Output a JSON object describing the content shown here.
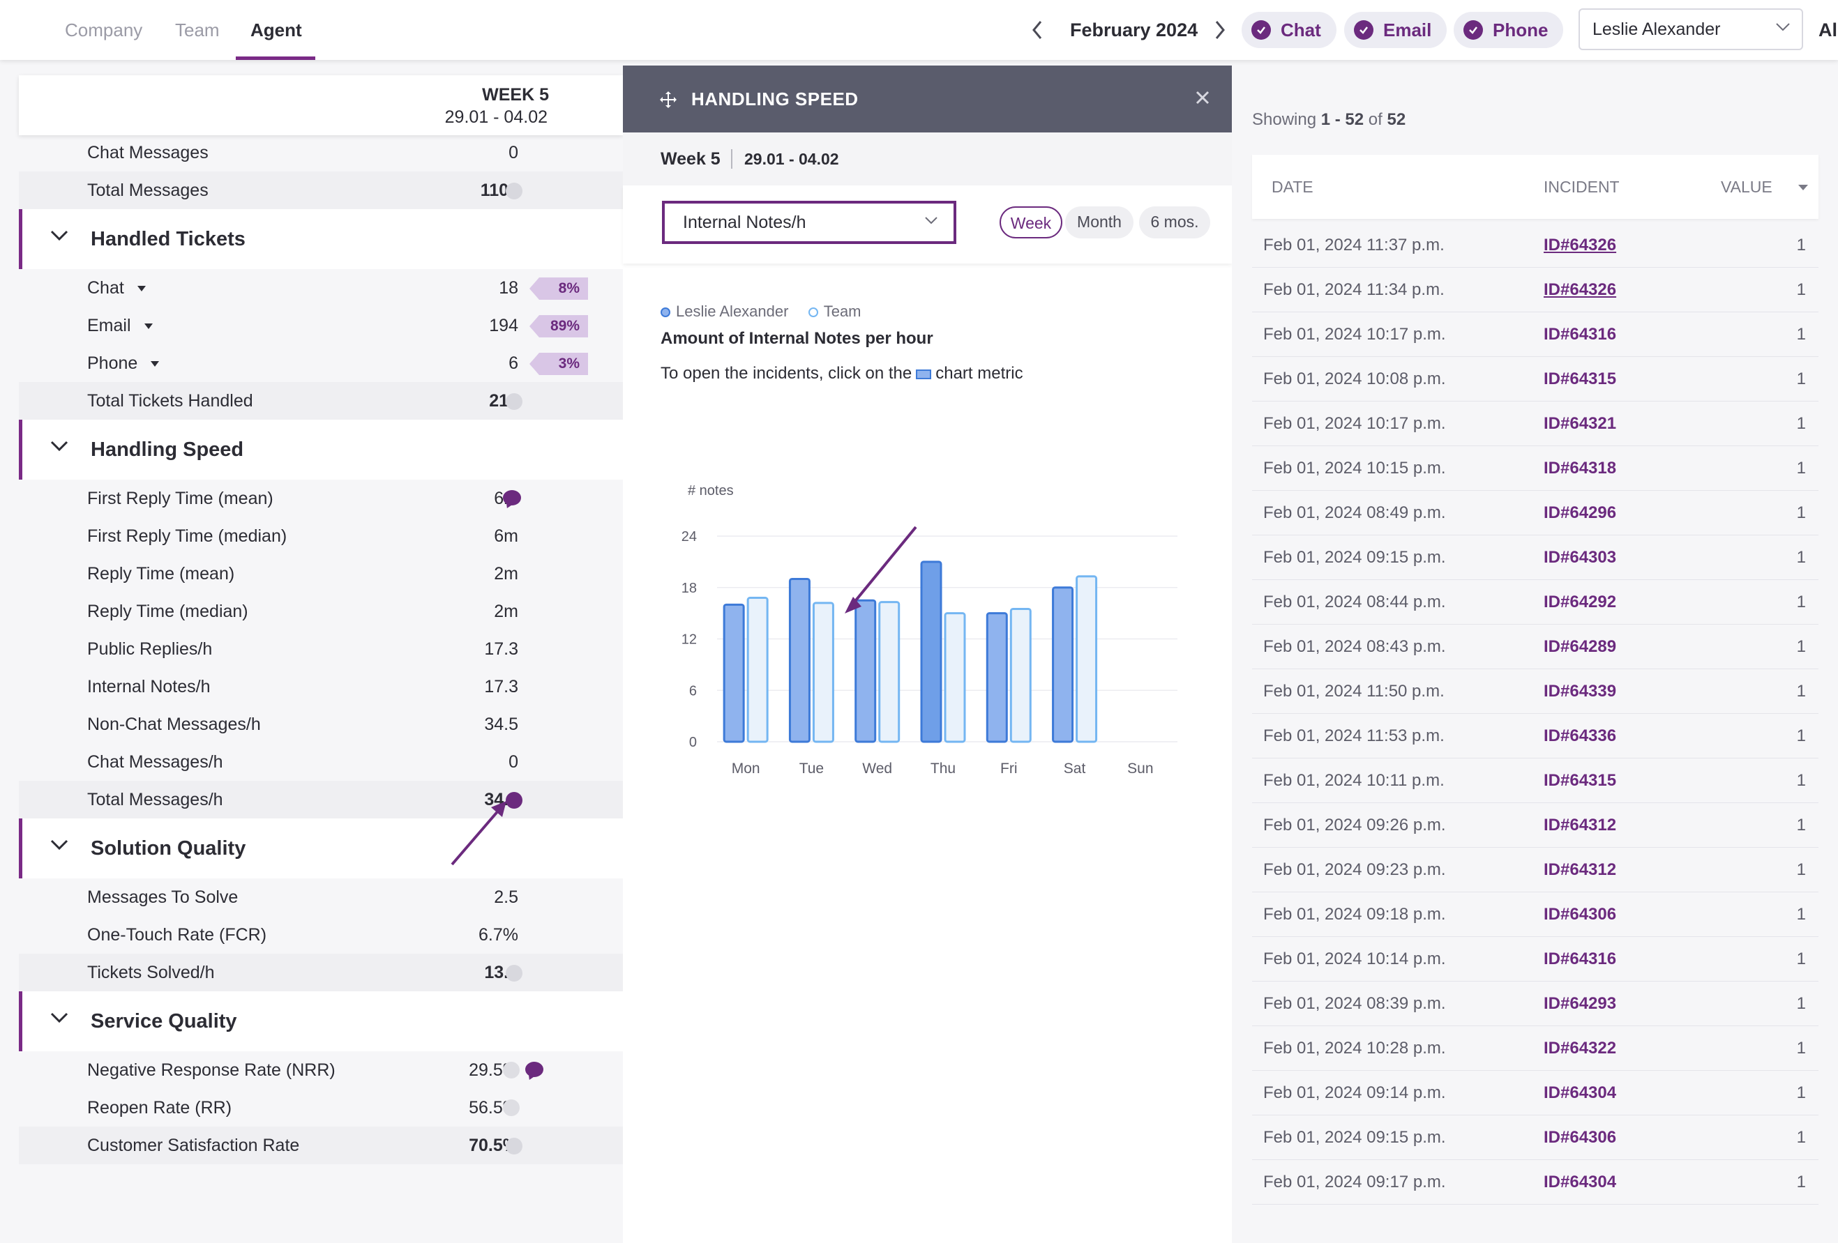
{
  "topnav": {
    "tabs": [
      {
        "label": "Company"
      },
      {
        "label": "Team"
      },
      {
        "label": "Agent"
      }
    ],
    "month": "February 2024",
    "channels": [
      {
        "label": "Chat"
      },
      {
        "label": "Email"
      },
      {
        "label": "Phone"
      }
    ],
    "agent_select": "Leslie Alexander",
    "edge_text": "Al"
  },
  "left_panel": {
    "week_label": "WEEK 5",
    "week_range": "29.01 - 04.02",
    "rows_top": [
      {
        "label": "Chat Messages",
        "value": "0"
      },
      {
        "label": "Total Messages",
        "value": "1104"
      }
    ],
    "sections": {
      "handled_tickets": {
        "title": "Handled Tickets",
        "rows": [
          {
            "label": "Chat",
            "value": "18",
            "pct": "8%"
          },
          {
            "label": "Email",
            "value": "194",
            "pct": "89%"
          },
          {
            "label": "Phone",
            "value": "6",
            "pct": "3%"
          }
        ],
        "total": {
          "label": "Total Tickets Handled",
          "value": "218"
        }
      },
      "handling_speed": {
        "title": "Handling Speed",
        "rows": [
          {
            "label": "First Reply Time (mean)",
            "value": "6m"
          },
          {
            "label": "First Reply Time (median)",
            "value": "6m"
          },
          {
            "label": "Reply Time (mean)",
            "value": "2m"
          },
          {
            "label": "Reply Time (median)",
            "value": "2m"
          },
          {
            "label": "Public Replies/h",
            "value": "17.3"
          },
          {
            "label": "Internal Notes/h",
            "value": "17.3"
          },
          {
            "label": "Non-Chat Messages/h",
            "value": "34.5"
          },
          {
            "label": "Chat Messages/h",
            "value": "0"
          }
        ],
        "total": {
          "label": "Total Messages/h",
          "value": "34.5"
        }
      },
      "solution_quality": {
        "title": "Solution Quality",
        "rows": [
          {
            "label": "Messages To Solve",
            "value": "2.5"
          },
          {
            "label": "One-Touch Rate (FCR)",
            "value": "6.7%"
          }
        ],
        "total": {
          "label": "Tickets Solved/h",
          "value": "13.9"
        }
      },
      "service_quality": {
        "title": "Service Quality",
        "rows": [
          {
            "label": "Negative Response Rate (NRR)",
            "value": "29.5%"
          },
          {
            "label": "Reopen Rate (RR)",
            "value": "56.5%"
          }
        ],
        "total": {
          "label": "Customer Satisfaction Rate",
          "value": "70.5%"
        }
      }
    }
  },
  "modal": {
    "title": "HANDLING SPEED",
    "week": "Week 5",
    "range": "29.01 - 04.02",
    "metric": "Internal Notes/h",
    "periods": [
      "Week",
      "Month",
      "6 mos."
    ],
    "legend": [
      "Leslie Alexander",
      "Team"
    ],
    "chart_title": "Amount of Internal Notes per hour",
    "hint_before": "To open the incidents, click on the",
    "hint_after": "chart metric"
  },
  "chart_data": {
    "type": "bar",
    "title": "Amount of Internal Notes per hour",
    "ylabel": "# notes",
    "xlabel": "",
    "categories": [
      "Mon",
      "Tue",
      "Wed",
      "Thu",
      "Fri",
      "Sat",
      "Sun"
    ],
    "yticks": [
      "0",
      "6",
      "12",
      "18",
      "24"
    ],
    "ylim": [
      0,
      24
    ],
    "grid": true,
    "series": [
      {
        "name": "Leslie Alexander",
        "values": [
          16,
          19,
          16.5,
          21,
          15,
          18,
          null
        ],
        "color": "#8fb3ee",
        "stroke": "#3d7ad8"
      },
      {
        "name": "Team",
        "values": [
          16.8,
          16.2,
          16.3,
          15,
          15.5,
          19.3,
          null
        ],
        "color": "#e9f2fb",
        "stroke": "#74b6f2"
      }
    ],
    "highlight": {
      "series": 0,
      "category": "Thu"
    }
  },
  "incidents": {
    "showing_prefix": "Showing",
    "showing_range": "1 - 52",
    "showing_of": "of",
    "showing_total": "52",
    "headers": {
      "date": "DATE",
      "incident": "INCIDENT",
      "value": "VALUE"
    },
    "rows": [
      {
        "date": "Feb 01, 2024 11:37 p.m.",
        "id": "ID#64326",
        "value": "1"
      },
      {
        "date": "Feb 01, 2024 11:34 p.m.",
        "id": "ID#64326",
        "value": "1"
      },
      {
        "date": "Feb 01, 2024 10:17 p.m.",
        "id": "ID#64316",
        "value": "1"
      },
      {
        "date": "Feb 01, 2024 10:08 p.m.",
        "id": "ID#64315",
        "value": "1"
      },
      {
        "date": "Feb 01, 2024 10:17 p.m.",
        "id": "ID#64321",
        "value": "1"
      },
      {
        "date": "Feb 01, 2024 10:15 p.m.",
        "id": "ID#64318",
        "value": "1"
      },
      {
        "date": "Feb 01, 2024 08:49 p.m.",
        "id": "ID#64296",
        "value": "1"
      },
      {
        "date": "Feb 01, 2024 09:15 p.m.",
        "id": "ID#64303",
        "value": "1"
      },
      {
        "date": "Feb 01, 2024 08:44 p.m.",
        "id": "ID#64292",
        "value": "1"
      },
      {
        "date": "Feb 01, 2024 08:43 p.m.",
        "id": "ID#64289",
        "value": "1"
      },
      {
        "date": "Feb 01, 2024 11:50 p.m.",
        "id": "ID#64339",
        "value": "1"
      },
      {
        "date": "Feb 01, 2024 11:53 p.m.",
        "id": "ID#64336",
        "value": "1"
      },
      {
        "date": "Feb 01, 2024 10:11 p.m.",
        "id": "ID#64315",
        "value": "1"
      },
      {
        "date": "Feb 01, 2024 09:26 p.m.",
        "id": "ID#64312",
        "value": "1"
      },
      {
        "date": "Feb 01, 2024 09:23 p.m.",
        "id": "ID#64312",
        "value": "1"
      },
      {
        "date": "Feb 01, 2024 09:18 p.m.",
        "id": "ID#64306",
        "value": "1"
      },
      {
        "date": "Feb 01, 2024 10:14 p.m.",
        "id": "ID#64316",
        "value": "1"
      },
      {
        "date": "Feb 01, 2024 08:39 p.m.",
        "id": "ID#64293",
        "value": "1"
      },
      {
        "date": "Feb 01, 2024 10:28 p.m.",
        "id": "ID#64322",
        "value": "1"
      },
      {
        "date": "Feb 01, 2024 09:14 p.m.",
        "id": "ID#64304",
        "value": "1"
      },
      {
        "date": "Feb 01, 2024 09:15 p.m.",
        "id": "ID#64306",
        "value": "1"
      },
      {
        "date": "Feb 01, 2024 09:17 p.m.",
        "id": "ID#64304",
        "value": "1"
      }
    ]
  },
  "colors": {
    "accent": "#6b2a7e",
    "header_gray": "#5a5c6c",
    "bar_agent": "#8fb3ee",
    "bar_team": "#e9f2fb"
  }
}
